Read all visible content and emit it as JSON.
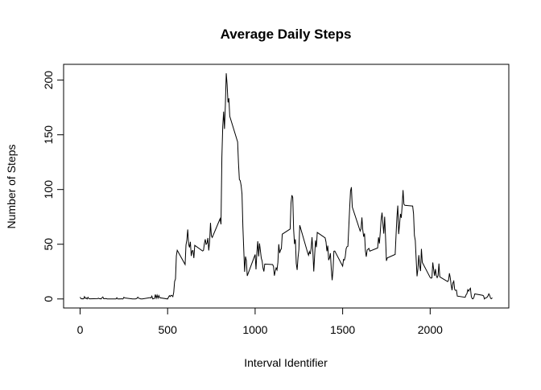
{
  "chart_data": {
    "type": "line",
    "title": "Average Daily Steps",
    "xlabel": "Interval Identifier",
    "ylabel": "Number of Steps",
    "xlim": [
      -94.2,
      2449.2
    ],
    "ylim": [
      -8.25,
      214.4
    ],
    "xticks": [
      0,
      500,
      1000,
      1500,
      2000
    ],
    "yticks": [
      0,
      50,
      100,
      150,
      200
    ],
    "grid": false,
    "x": [
      0,
      5,
      10,
      15,
      20,
      25,
      30,
      35,
      40,
      45,
      50,
      55,
      100,
      105,
      110,
      115,
      120,
      125,
      130,
      135,
      140,
      145,
      150,
      155,
      200,
      205,
      210,
      215,
      220,
      225,
      230,
      235,
      240,
      245,
      250,
      255,
      300,
      305,
      310,
      315,
      320,
      325,
      330,
      335,
      340,
      345,
      350,
      355,
      400,
      405,
      410,
      415,
      420,
      425,
      430,
      435,
      440,
      445,
      450,
      455,
      500,
      505,
      510,
      515,
      520,
      525,
      530,
      535,
      540,
      545,
      550,
      555,
      600,
      605,
      610,
      615,
      620,
      625,
      630,
      635,
      640,
      645,
      650,
      655,
      700,
      705,
      710,
      715,
      720,
      725,
      730,
      735,
      740,
      745,
      750,
      755,
      800,
      805,
      810,
      815,
      820,
      825,
      830,
      835,
      840,
      845,
      850,
      855,
      900,
      905,
      910,
      915,
      920,
      925,
      930,
      935,
      940,
      945,
      950,
      955,
      1000,
      1005,
      1010,
      1015,
      1020,
      1025,
      1030,
      1035,
      1040,
      1045,
      1050,
      1055,
      1100,
      1105,
      1110,
      1115,
      1120,
      1125,
      1130,
      1135,
      1140,
      1145,
      1150,
      1155,
      1200,
      1205,
      1210,
      1215,
      1220,
      1225,
      1230,
      1235,
      1240,
      1245,
      1250,
      1255,
      1300,
      1305,
      1310,
      1315,
      1320,
      1325,
      1330,
      1335,
      1340,
      1345,
      1350,
      1355,
      1400,
      1405,
      1410,
      1415,
      1420,
      1425,
      1430,
      1435,
      1440,
      1445,
      1450,
      1455,
      1500,
      1505,
      1510,
      1515,
      1520,
      1525,
      1530,
      1535,
      1540,
      1545,
      1550,
      1555,
      1600,
      1605,
      1610,
      1615,
      1620,
      1625,
      1630,
      1635,
      1640,
      1645,
      1650,
      1655,
      1700,
      1705,
      1710,
      1715,
      1720,
      1725,
      1730,
      1735,
      1740,
      1745,
      1750,
      1755,
      1800,
      1805,
      1810,
      1815,
      1820,
      1825,
      1830,
      1835,
      1840,
      1845,
      1850,
      1855,
      1900,
      1905,
      1910,
      1915,
      1920,
      1925,
      1930,
      1935,
      1940,
      1945,
      1950,
      1955,
      2000,
      2005,
      2010,
      2015,
      2020,
      2025,
      2030,
      2035,
      2040,
      2045,
      2050,
      2055,
      2100,
      2105,
      2110,
      2115,
      2120,
      2125,
      2130,
      2135,
      2140,
      2145,
      2150,
      2155,
      2200,
      2205,
      2210,
      2215,
      2220,
      2225,
      2230,
      2235,
      2240,
      2245,
      2250,
      2255,
      2300,
      2305,
      2310,
      2315,
      2320,
      2325,
      2330,
      2335,
      2340,
      2345,
      2350,
      2355
    ],
    "series": [
      {
        "name": "steps",
        "color": "#000000",
        "values": [
          1.7,
          0.3,
          0.1,
          0.2,
          0.1,
          2.1,
          0.5,
          0.9,
          0,
          1.5,
          0.3,
          0.1,
          0.3,
          0.7,
          0.2,
          0.3,
          0,
          1.1,
          1.8,
          0.2,
          0.2,
          0.4,
          0.3,
          0,
          0,
          0,
          1.1,
          0,
          0,
          0.1,
          0,
          0.2,
          0,
          0,
          1.5,
          0.9,
          0,
          0,
          0,
          0,
          0.2,
          0.6,
          1.6,
          0.6,
          0.5,
          0.1,
          0,
          0,
          1.2,
          0.9,
          2.6,
          0,
          0.3,
          0.4,
          4.1,
          0.7,
          3.5,
          0.8,
          3.1,
          1.1,
          0,
          1.6,
          3.0,
          2.2,
          3.3,
          3.0,
          2.1,
          6.1,
          16.0,
          18.3,
          39.5,
          44.5,
          31.5,
          49.3,
          53.8,
          63.5,
          50.0,
          47.1,
          52.2,
          39.3,
          44.0,
          44.2,
          37.4,
          49.0,
          43.8,
          44.4,
          50.5,
          54.5,
          49.9,
          51.0,
          55.7,
          44.3,
          52.3,
          69.5,
          57.8,
          56.2,
          73.4,
          68.2,
          129.4,
          157.5,
          171.2,
          155.4,
          177.3,
          206.2,
          195.9,
          179.6,
          183.4,
          167.0,
          143.5,
          124.0,
          109.1,
          108.1,
          103.7,
          96.0,
          66.2,
          45.2,
          24.8,
          38.8,
          35.0,
          21.1,
          40.6,
          27.0,
          42.4,
          52.7,
          38.9,
          50.8,
          44.3,
          37.4,
          34.7,
          28.3,
          25.1,
          31.9,
          31.4,
          29.7,
          21.3,
          25.5,
          28.4,
          26.5,
          33.4,
          50.0,
          42.0,
          44.6,
          46.0,
          59.2,
          63.9,
          87.7,
          94.8,
          92.8,
          63.4,
          50.2,
          54.5,
          32.4,
          26.5,
          37.7,
          45.1,
          67.3,
          42.3,
          39.9,
          43.3,
          41.0,
          46.2,
          56.4,
          42.8,
          25.1,
          40.0,
          53.5,
          47.3,
          60.8,
          55.8,
          52.0,
          43.6,
          48.7,
          35.5,
          37.5,
          41.8,
          27.5,
          17.1,
          26.1,
          43.6,
          43.8,
          30.0,
          36.1,
          35.5,
          38.8,
          46.0,
          47.8,
          48.1,
          65.3,
          82.9,
          98.7,
          102.1,
          84.0,
          62.1,
          64.1,
          74.5,
          63.2,
          56.9,
          59.8,
          43.9,
          38.6,
          44.7,
          45.5,
          46.2,
          43.7,
          46.6,
          56.3,
          50.7,
          61.2,
          72.7,
          78.9,
          68.9,
          59.7,
          75.1,
          56.5,
          34.8,
          37.5,
          40.7,
          58.0,
          74.7,
          85.3,
          59.3,
          67.8,
          77.7,
          74.2,
          85.3,
          99.5,
          86.6,
          85.6,
          84.9,
          77.8,
          58.0,
          53.4,
          36.3,
          20.7,
          27.4,
          40.0,
          30.2,
          25.5,
          45.7,
          33.5,
          19.6,
          19.0,
          19.3,
          33.3,
          26.8,
          21.2,
          27.3,
          21.3,
          19.5,
          21.3,
          32.3,
          20.2,
          15.9,
          17.2,
          23.5,
          19.2,
          12.5,
          8.0,
          14.7,
          16.3,
          8.7,
          7.8,
          8.1,
          2.6,
          1.5,
          3.7,
          4.8,
          8.5,
          7.1,
          8.7,
          9.8,
          2.2,
          0.3,
          0.1,
          1.6,
          4.6,
          3.3,
          2.8,
          0,
          0.8,
          1.0,
          1.6,
          2.6,
          4.7,
          3.3,
          0.6,
          0.2,
          1.1
        ]
      }
    ]
  }
}
